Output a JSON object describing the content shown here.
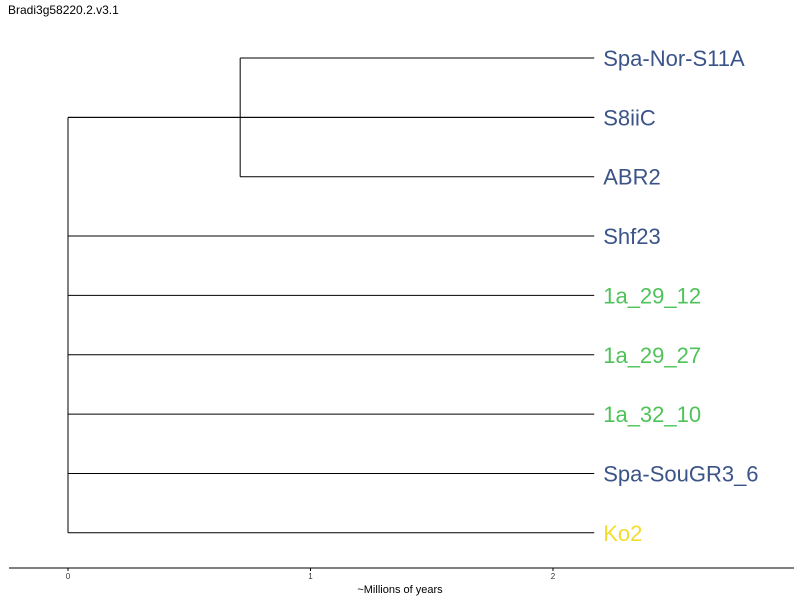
{
  "title": "Bradi3g58220.2.v3.1",
  "chart_data": {
    "type": "dendrogram",
    "title": "Bradi3g58220.2.v3.1",
    "xlabel": "~Millions of years",
    "x_ticks": [
      0,
      1,
      2
    ],
    "xlim": [
      -0.24,
      3.0
    ],
    "tips": [
      {
        "label": "Spa-Nor-S11A",
        "color": "#3b5488",
        "tip_x": 2.17
      },
      {
        "label": "S8iiC",
        "color": "#3b5488",
        "tip_x": 2.17
      },
      {
        "label": "ABR2",
        "color": "#3b5488",
        "tip_x": 2.17
      },
      {
        "label": "Shf23",
        "color": "#3b5488",
        "tip_x": 2.17
      },
      {
        "label": "1a_29_12",
        "color": "#4fc35a",
        "tip_x": 2.17
      },
      {
        "label": "1a_29_27",
        "color": "#4fc35a",
        "tip_x": 2.17
      },
      {
        "label": "1a_32_10",
        "color": "#4fc35a",
        "tip_x": 2.17
      },
      {
        "label": "Spa-SouGR3_6",
        "color": "#3b5488",
        "tip_x": 2.17
      },
      {
        "label": "Ko2",
        "color": "#f2dc2d",
        "tip_x": 2.17
      }
    ],
    "clades": [
      {
        "node_x": 0.71,
        "tips": [
          0,
          2
        ]
      },
      {
        "node_x": 0.0,
        "tips": [
          1,
          8
        ]
      }
    ]
  }
}
